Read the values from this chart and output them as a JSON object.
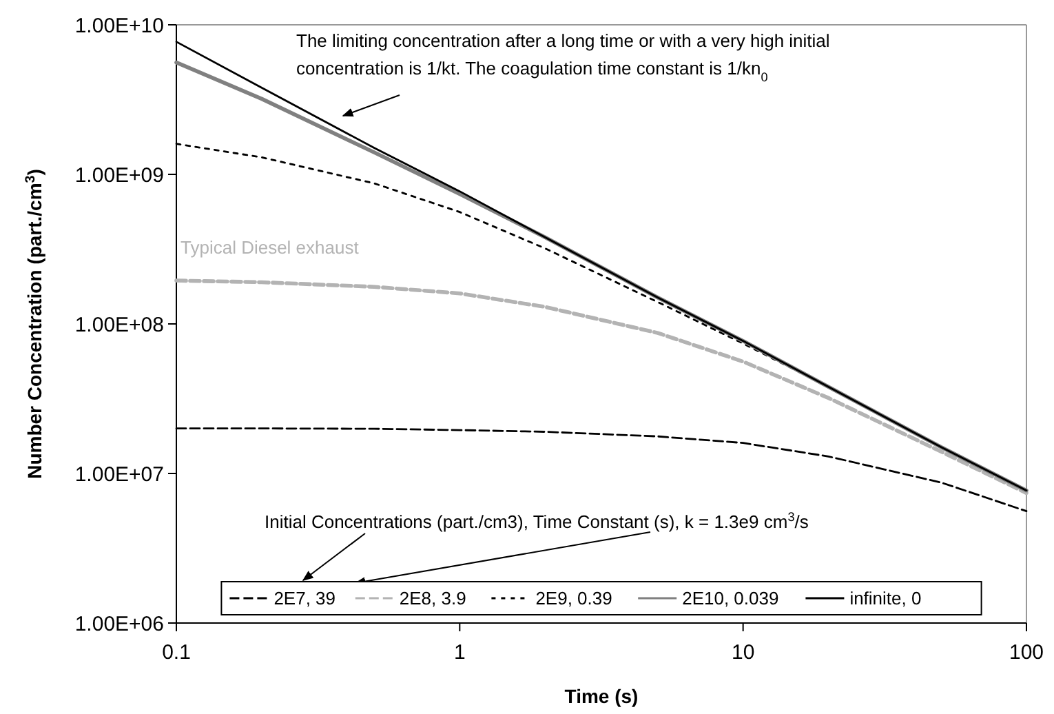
{
  "chart_data": {
    "type": "line",
    "xlabel": "Time (s)",
    "ylabel": "Number Concentration (part./cm$^{3}$)",
    "log": "xy",
    "grid": false,
    "legend": "bottom",
    "marker": "none",
    "x": [
      0.1,
      0.2,
      0.5,
      1,
      2,
      5,
      10,
      20,
      50,
      100
    ],
    "xlim": [
      0.1,
      100
    ],
    "xticks": [
      0.1,
      1,
      10,
      100
    ],
    "ylim": [
      1000000,
      10000000000
    ],
    "yticks": [
      {
        "value": 1000000,
        "label": "1.00E+06"
      },
      {
        "value": 10000000,
        "label": "1.00E+07"
      },
      {
        "value": 100000000,
        "label": "1.00E+08"
      },
      {
        "value": 1000000000,
        "label": "1.00E+09"
      },
      {
        "value": 10000000000,
        "label": "1.00E+10"
      }
    ],
    "series": [
      {
        "name": "2E7, 39",
        "color": "#000000",
        "line_style": "dashed",
        "values": [
          20000000,
          20000000,
          19900000,
          19500000,
          19000000,
          17700000,
          16000000,
          13000000,
          8700000,
          5600000
        ]
      },
      {
        "name": "2E8, 3.9",
        "color": "#b3b3b3",
        "line_style": "dashed",
        "values": [
          195000000,
          190000000,
          177000000,
          160000000,
          130000000,
          87000000,
          56000000,
          32000000,
          14000000,
          7400000
        ]
      },
      {
        "name": "2E9, 0.39",
        "color": "#000000",
        "line_style": "dotted",
        "values": [
          1600000000,
          1300000000,
          870000000,
          560000000,
          320000000,
          140000000,
          74000000,
          38000000,
          15000000,
          7600000
        ]
      },
      {
        "name": "2E10, 0.039",
        "color": "#808080",
        "line_style": "solid",
        "values": [
          5600000000,
          3200000000,
          1400000000,
          740000000,
          380000000,
          150000000,
          77000000,
          38000000,
          15000000,
          7700000
        ]
      },
      {
        "name": "infinite, 0",
        "color": "#000000",
        "line_style": "solid",
        "values": [
          7700000000,
          3800000000,
          1500000000,
          770000000,
          380000000,
          150000000,
          77000000,
          38000000,
          15000000,
          7700000
        ]
      }
    ],
    "annotations": [
      "The limiting concentration after a long time or with a very high initial concentration is 1/kt.  The coagulation time constant is 1/kn$_{0}$",
      "Typical Diesel exhaust",
      "Initial Concentrations (part./cm3),  Time Constant  (s), k = 1.3e9 cm$^{3}$/s"
    ]
  }
}
